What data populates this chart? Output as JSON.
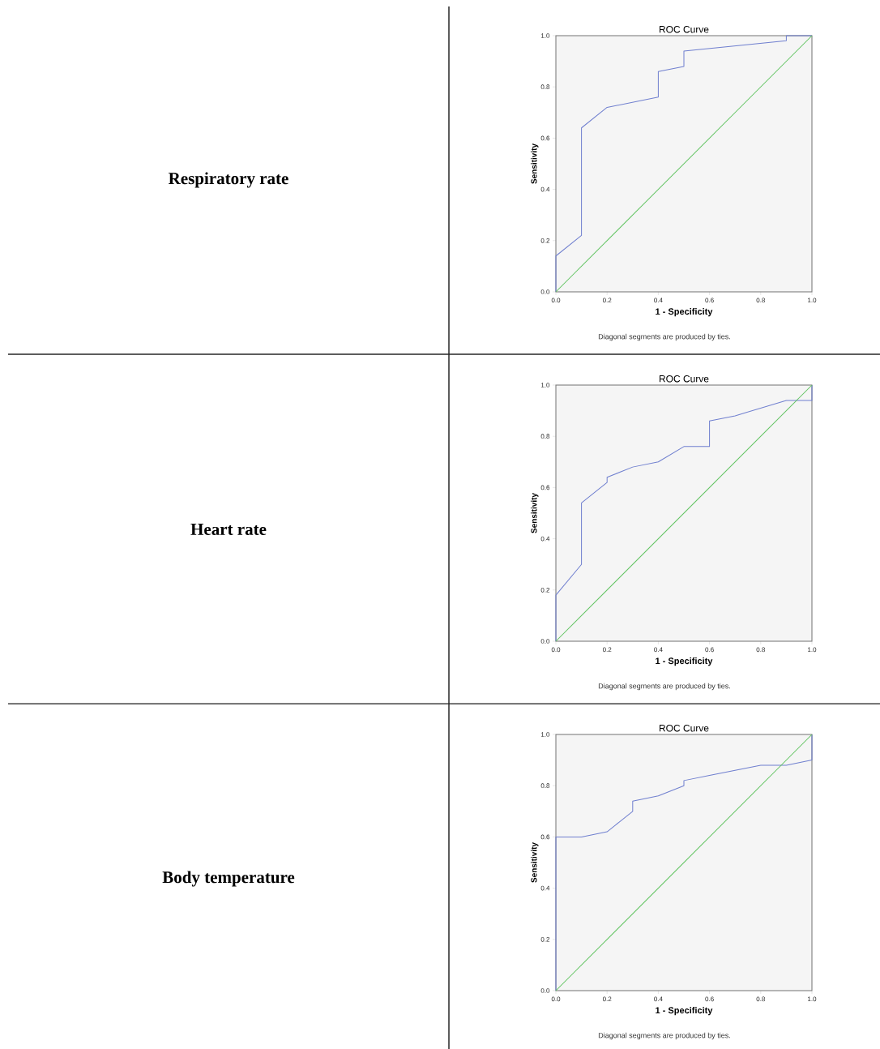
{
  "chart_data": [
    {
      "type": "line",
      "title": "ROC Curve",
      "xlabel": "1 - Specificity",
      "ylabel": "Sensitivity",
      "annotations": [
        "Diagonal segments are produced by ties.",
        "**Respiratory rate**"
      ],
      "xlim": [
        0,
        1
      ],
      "ylim": [
        0,
        1
      ],
      "xticks": [
        {
          "value": 0,
          "label": "0.0"
        },
        {
          "value": 0.2,
          "label": "0.2"
        },
        {
          "value": 0.4,
          "label": "0.4"
        },
        {
          "value": 0.6,
          "label": "0.6"
        },
        {
          "value": 0.8,
          "label": "0.8"
        },
        {
          "value": 1,
          "label": "1.0"
        }
      ],
      "yticks": [
        {
          "value": 0,
          "label": "0.0"
        },
        {
          "value": 0.2,
          "label": "0.2"
        },
        {
          "value": 0.4,
          "label": "0.4"
        },
        {
          "value": 0.6,
          "label": "0.6"
        },
        {
          "value": 0.8,
          "label": "0.8"
        },
        {
          "value": 1,
          "label": "1.0"
        }
      ],
      "series": [
        {
          "color": "#6f7fcf",
          "x": [
            0,
            0,
            0.1,
            0.1,
            0.2,
            0.4,
            0.4,
            0.5,
            0.5,
            0.9,
            0.9,
            1.0
          ],
          "values": [
            0,
            0.14,
            0.22,
            0.64,
            0.72,
            0.76,
            0.86,
            0.88,
            0.94,
            0.98,
            1.0,
            1.0
          ]
        },
        {
          "color": "#5fc35f",
          "x": [
            0,
            1
          ],
          "values": [
            0,
            1
          ]
        }
      ]
    },
    {
      "type": "line",
      "title": "ROC Curve",
      "xlabel": "1 - Specificity",
      "ylabel": "Sensitivity",
      "annotations": [
        "Diagonal segments are produced by ties.",
        "**Heart rate**"
      ],
      "xlim": [
        0,
        1
      ],
      "ylim": [
        0,
        1
      ],
      "xticks": [
        {
          "value": 0,
          "label": "0.0"
        },
        {
          "value": 0.2,
          "label": "0.2"
        },
        {
          "value": 0.4,
          "label": "0.4"
        },
        {
          "value": 0.6,
          "label": "0.6"
        },
        {
          "value": 0.8,
          "label": "0.8"
        },
        {
          "value": 1,
          "label": "1.0"
        }
      ],
      "yticks": [
        {
          "value": 0,
          "label": "0.0"
        },
        {
          "value": 0.2,
          "label": "0.2"
        },
        {
          "value": 0.4,
          "label": "0.4"
        },
        {
          "value": 0.6,
          "label": "0.6"
        },
        {
          "value": 0.8,
          "label": "0.8"
        },
        {
          "value": 1,
          "label": "1.0"
        }
      ],
      "series": [
        {
          "color": "#6f7fcf",
          "x": [
            0,
            0,
            0.1,
            0.1,
            0.2,
            0.2,
            0.3,
            0.4,
            0.5,
            0.6,
            0.6,
            0.7,
            0.9,
            1.0,
            1.0
          ],
          "values": [
            0,
            0.18,
            0.3,
            0.54,
            0.62,
            0.64,
            0.68,
            0.7,
            0.76,
            0.76,
            0.86,
            0.88,
            0.94,
            0.94,
            1.0
          ]
        },
        {
          "color": "#5fc35f",
          "x": [
            0,
            1
          ],
          "values": [
            0,
            1
          ]
        }
      ]
    },
    {
      "type": "line",
      "title": "ROC Curve",
      "xlabel": "1 - Specificity",
      "ylabel": "Sensitivity",
      "annotations": [
        "Diagonal segments are produced by ties.",
        "**Body temperature**"
      ],
      "xlim": [
        0,
        1
      ],
      "ylim": [
        0,
        1
      ],
      "xticks": [
        {
          "value": 0,
          "label": "0.0"
        },
        {
          "value": 0.2,
          "label": "0.2"
        },
        {
          "value": 0.4,
          "label": "0.4"
        },
        {
          "value": 0.6,
          "label": "0.6"
        },
        {
          "value": 0.8,
          "label": "0.8"
        },
        {
          "value": 1,
          "label": "1.0"
        }
      ],
      "yticks": [
        {
          "value": 0,
          "label": "0.0"
        },
        {
          "value": 0.2,
          "label": "0.2"
        },
        {
          "value": 0.4,
          "label": "0.4"
        },
        {
          "value": 0.6,
          "label": "0.6"
        },
        {
          "value": 0.8,
          "label": "0.8"
        },
        {
          "value": 1,
          "label": "1.0"
        }
      ],
      "series": [
        {
          "color": "#6f7fcf",
          "x": [
            0,
            0,
            0.1,
            0.2,
            0.3,
            0.3,
            0.4,
            0.5,
            0.5,
            0.6,
            0.8,
            0.9,
            1.0,
            1.0
          ],
          "values": [
            0,
            0.6,
            0.6,
            0.62,
            0.7,
            0.74,
            0.76,
            0.8,
            0.82,
            0.84,
            0.88,
            0.88,
            0.9,
            1.0
          ]
        },
        {
          "color": "#5fc35f",
          "x": [
            0,
            1
          ],
          "values": [
            0,
            1
          ]
        }
      ]
    }
  ]
}
